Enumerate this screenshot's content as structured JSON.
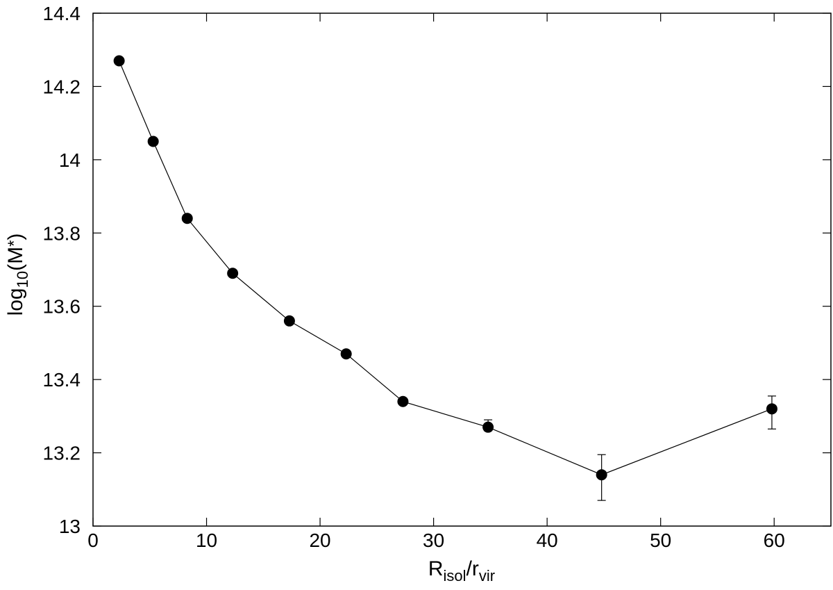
{
  "chart_data": {
    "type": "scatter",
    "xlabel": {
      "main": "R",
      "sub1": "isol",
      "mid": "/r",
      "sub2": "vir"
    },
    "ylabel": {
      "main": "log",
      "sub": "10",
      "rest": "(M",
      "star": "*",
      "close": ")"
    },
    "xlim": [
      0,
      65
    ],
    "ylim": [
      13,
      14.4
    ],
    "x_ticks": [
      0,
      10,
      20,
      30,
      40,
      50,
      60
    ],
    "x_tick_labels": [
      "0",
      "10",
      "20",
      "30",
      "40",
      "50",
      "60"
    ],
    "y_ticks": [
      13,
      13.2,
      13.4,
      13.6,
      13.8,
      14,
      14.2,
      14.4
    ],
    "y_tick_labels": [
      "13",
      "13.2",
      "13.4",
      "13.6",
      "13.8",
      "14",
      "14.2",
      "14.4"
    ],
    "grid": false,
    "series": [
      {
        "x": [
          2.3,
          5.3,
          8.3,
          12.3,
          17.3,
          22.3,
          27.3,
          34.8,
          44.8,
          59.8
        ],
        "y": [
          14.27,
          14.05,
          13.84,
          13.69,
          13.56,
          13.47,
          13.34,
          13.27,
          13.14,
          13.32
        ],
        "yerr_low": [
          0,
          0,
          0,
          0,
          0,
          0,
          0,
          0.01,
          0.07,
          0.055
        ],
        "yerr_high": [
          0,
          0,
          0,
          0,
          0,
          0,
          0,
          0.02,
          0.055,
          0.035
        ],
        "marker": "filled-circle",
        "line": true,
        "color": "#000000"
      }
    ]
  }
}
